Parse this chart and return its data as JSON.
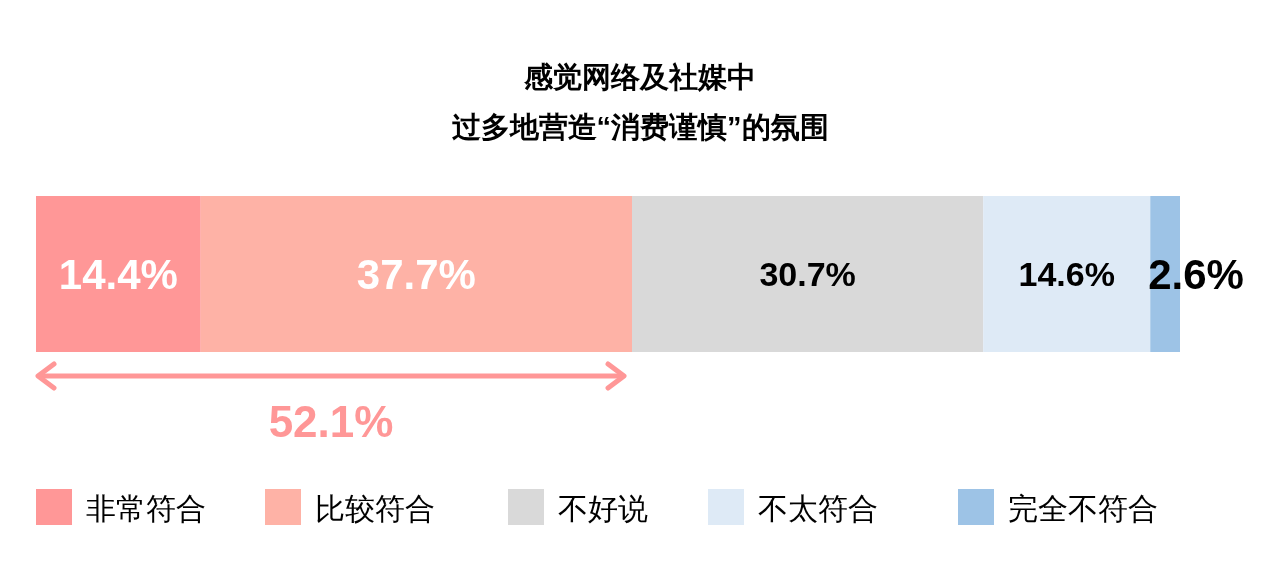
{
  "chart_data": {
    "type": "bar",
    "orientation": "horizontal",
    "stacked": true,
    "title": "感觉网络及社媒中",
    "subtitle": "过多地营造“消费谨慎”的氛围",
    "categories": [
      null
    ],
    "series": [
      {
        "name": "非常符合",
        "color": "#ff9797",
        "values": [
          14.4
        ],
        "value_labels": [
          "14.4%"
        ]
      },
      {
        "name": "比较符合",
        "color": "#feb2a6",
        "values": [
          37.7
        ],
        "value_labels": [
          "37.7%"
        ]
      },
      {
        "name": "不好说",
        "color": "#d9d9d9",
        "values": [
          30.7
        ],
        "value_labels": [
          "30.7%"
        ]
      },
      {
        "name": "不太符合",
        "color": "#deeaf6",
        "values": [
          14.6
        ],
        "value_labels": [
          "14.6%"
        ]
      },
      {
        "name": "完全不符合",
        "color": "#9dc3e6",
        "values": [
          2.6
        ],
        "value_labels": [
          "2.6%"
        ]
      }
    ],
    "legend": "bottom",
    "annotations": [
      "52.1%"
    ]
  }
}
